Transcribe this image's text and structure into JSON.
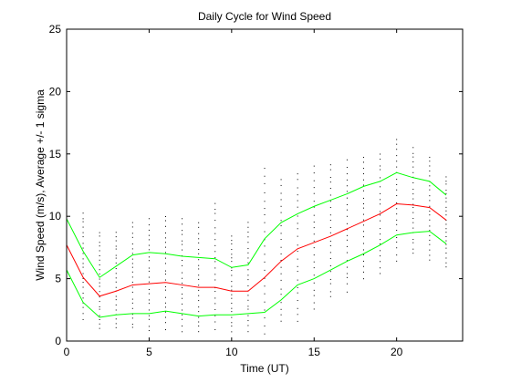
{
  "chart_data": {
    "type": "line",
    "title": "Daily Cycle for Wind Speed",
    "xlabel": "Time (UT)",
    "ylabel": "Wind Speed (m/s), Average +/- 1 sigma",
    "xlim": [
      0,
      24
    ],
    "ylim": [
      0,
      25
    ],
    "xticks": [
      0,
      5,
      10,
      15,
      20
    ],
    "yticks": [
      0,
      5,
      10,
      15,
      20,
      25
    ],
    "grid": false,
    "x": [
      0,
      1,
      2,
      3,
      4,
      5,
      6,
      7,
      8,
      9,
      10,
      11,
      12,
      13,
      14,
      15,
      16,
      17,
      18,
      19,
      20,
      21,
      22,
      23
    ],
    "series": [
      {
        "color": "#00ff00",
        "values": [
          9.8,
          7.2,
          5.1,
          6.0,
          6.9,
          7.1,
          7.0,
          6.8,
          6.7,
          6.6,
          5.9,
          6.1,
          8.2,
          9.5,
          10.2,
          10.8,
          11.3,
          11.8,
          12.4,
          12.8,
          13.5,
          13.1,
          12.8,
          11.7
        ]
      },
      {
        "color": "#ff0000",
        "values": [
          7.7,
          5.1,
          3.6,
          4.0,
          4.5,
          4.6,
          4.7,
          4.5,
          4.3,
          4.3,
          4.0,
          4.0,
          5.1,
          6.4,
          7.4,
          7.9,
          8.4,
          9.0,
          9.6,
          10.2,
          11.0,
          10.9,
          10.7,
          9.7
        ]
      },
      {
        "color": "#00ff00",
        "values": [
          5.7,
          3.1,
          1.9,
          2.1,
          2.2,
          2.2,
          2.4,
          2.2,
          2.0,
          2.1,
          2.1,
          2.2,
          2.3,
          3.3,
          4.5,
          5.0,
          5.7,
          6.4,
          7.0,
          7.7,
          8.5,
          8.7,
          8.8,
          7.8
        ]
      }
    ],
    "observations": {
      "color": "#000000",
      "x": [
        0,
        1,
        2,
        3,
        4,
        5,
        6,
        7,
        8,
        9,
        10,
        11,
        12,
        13,
        14,
        15,
        16,
        17,
        18,
        19,
        20,
        21,
        22,
        23
      ],
      "ranges": [
        [
          4.5,
          10.0
        ],
        [
          1.8,
          10.3
        ],
        [
          1.0,
          8.7
        ],
        [
          1.0,
          8.8
        ],
        [
          1.0,
          9.5
        ],
        [
          0.8,
          9.8
        ],
        [
          1.0,
          10.0
        ],
        [
          0.8,
          9.8
        ],
        [
          0.7,
          9.5
        ],
        [
          1.0,
          11.1
        ],
        [
          0.8,
          8.5
        ],
        [
          0.8,
          9.5
        ],
        [
          0.6,
          13.8
        ],
        [
          1.5,
          13.0
        ],
        [
          1.5,
          13.5
        ],
        [
          2.5,
          14.0
        ],
        [
          3.5,
          14.2
        ],
        [
          4.0,
          14.5
        ],
        [
          5.0,
          14.8
        ],
        [
          5.5,
          15.0
        ],
        [
          6.5,
          16.2
        ],
        [
          7.0,
          15.5
        ],
        [
          6.5,
          14.8
        ],
        [
          6.0,
          13.2
        ]
      ],
      "points_per_hour": 22
    }
  }
}
